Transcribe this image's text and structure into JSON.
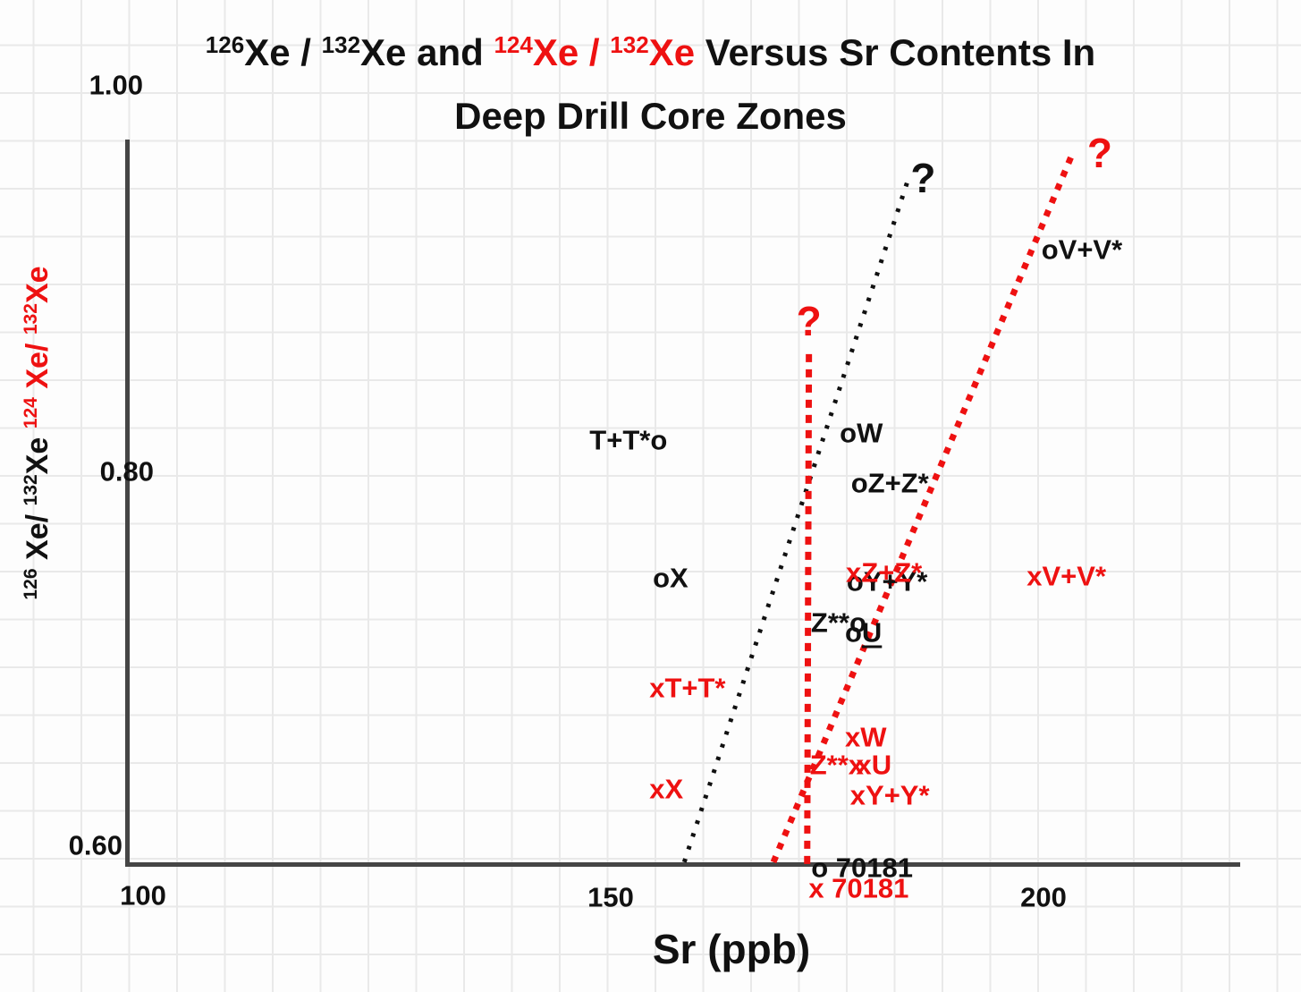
{
  "colors": {
    "red_accent": "#ee1111",
    "black_ink": "#111111",
    "axis_gray": "#454545",
    "grid_gray": "#e9e9e9"
  },
  "title": {
    "pre_sup_a": "126",
    "pre_a": "Xe / ",
    "pre_sup_b": "132",
    "pre_b": "Xe and ",
    "red_sup_a": "124",
    "red_a": "Xe / ",
    "red_sup_b": "132",
    "red_b": "Xe",
    "post": " Versus Sr Contents In",
    "line2": "Deep Drill Core Zones"
  },
  "y_axis": {
    "label_black": {
      "sup_a": "126",
      "a": " Xe/ ",
      "sup_b": "132",
      "b": "Xe"
    },
    "label_red": {
      "sup_a": "124",
      "a": " Xe/ ",
      "sup_b": "132",
      "b": "Xe"
    },
    "tick_top": "1.00",
    "tick_mid": "0.80",
    "tick_bottom": "0.60"
  },
  "x_axis": {
    "label": "Sr (ppb)",
    "tick_100": "100",
    "tick_150": "150",
    "tick_200": "200"
  },
  "chart_data": {
    "type": "scatter",
    "title": "126Xe/132Xe and 124Xe/132Xe Versus Sr Contents In Deep Drill Core Zones",
    "xlabel": "Sr (ppb)",
    "ylabel": "126Xe/132Xe (black o markers) and 124Xe/132Xe (red x markers)",
    "xlim": [
      95,
      222
    ],
    "ylim": [
      0.58,
      1.0
    ],
    "x_ticks": [
      100,
      150,
      200
    ],
    "y_ticks": [
      0.6,
      0.8,
      1.0
    ],
    "grid": true,
    "legend": "none (markers o/x embedded in point labels)",
    "calibration": {
      "x_anchors": [
        [
          100,
          160
        ],
        [
          150,
          683
        ],
        [
          200,
          1167
        ]
      ],
      "y_anchors": [
        [
          0.6,
          945
        ],
        [
          0.8,
          527
        ],
        [
          1.0,
          95
        ]
      ]
    },
    "series": [
      {
        "name": "126Xe/132Xe",
        "marker": "o",
        "color": "#111111",
        "points": [
          {
            "zone": "T+T*",
            "label": "T+T*o",
            "anchor": "end",
            "sr": 155.4,
            "ratio": 0.816
          },
          {
            "zone": "W",
            "label": "oW",
            "anchor": "start",
            "sr": 177.6,
            "ratio": 0.82
          },
          {
            "zone": "Z+Z*",
            "label": "oZ+Z*",
            "anchor": "start",
            "sr": 178.9,
            "ratio": 0.794
          },
          {
            "zone": "X",
            "label": "oX",
            "anchor": "start",
            "sr": 156.0,
            "ratio": 0.743
          },
          {
            "zone": "Y+Y*",
            "label": "oY+Y*",
            "anchor": "start",
            "sr": 178.4,
            "ratio": 0.741
          },
          {
            "zone": "Z**",
            "label": "Z**o",
            "anchor": "end",
            "sr": 178.4,
            "ratio": 0.719
          },
          {
            "zone": "U",
            "label": "oU",
            "anchor": "start",
            "sr": 178.2,
            "ratio": 0.714,
            "underline": "U"
          },
          {
            "zone": "V+V*",
            "label": "oV+V*",
            "anchor": "start",
            "sr": 200.9,
            "ratio": 0.915
          },
          {
            "zone": "70181",
            "label": "o 70181",
            "anchor": "start",
            "sr": 174.3,
            "ratio": 0.588
          }
        ]
      },
      {
        "name": "124Xe/132Xe",
        "marker": "x",
        "color": "#ee1111",
        "points": [
          {
            "zone": "T+T*",
            "label": "xT+T*",
            "anchor": "start",
            "sr": 155.6,
            "ratio": 0.684
          },
          {
            "zone": "W",
            "label": "xW",
            "anchor": "start",
            "sr": 178.2,
            "ratio": 0.658
          },
          {
            "zone": "Z+Z*",
            "label": "xZ+Z*",
            "anchor": "start",
            "sr": 178.3,
            "ratio": 0.746
          },
          {
            "zone": "Z**",
            "label": "Z**x",
            "anchor": "end",
            "sr": 178.1,
            "ratio": 0.643
          },
          {
            "zone": "U",
            "label": "xU",
            "anchor": "start",
            "sr": 179.5,
            "ratio": 0.643
          },
          {
            "zone": "X",
            "label": "xX",
            "anchor": "start",
            "sr": 155.6,
            "ratio": 0.63
          },
          {
            "zone": "Y+Y*",
            "label": "xY+Y*",
            "anchor": "start",
            "sr": 178.8,
            "ratio": 0.627
          },
          {
            "zone": "V+V*",
            "label": "xV+V*",
            "anchor": "start",
            "sr": 199.2,
            "ratio": 0.744
          },
          {
            "zone": "70181",
            "label": "x 70181",
            "anchor": "start",
            "sr": 174.0,
            "ratio": 0.577
          }
        ]
      }
    ],
    "trend_lines": [
      {
        "name": "black-dashed-trend-line",
        "color": "#111111",
        "width": 5,
        "dash": "4 11",
        "from": [
          158.5,
          0.591
        ],
        "to": [
          184.5,
          0.953
        ],
        "question_mark": {
          "label": "?",
          "sr": 186.1,
          "ratio": 0.952
        }
      },
      {
        "name": "red-vertical-dashed-line",
        "color": "#ee1111",
        "width": 7,
        "dash": "9 8",
        "from": [
          172.7,
          0.59
        ],
        "to": [
          172.9,
          0.863
        ],
        "question_mark": {
          "label": "?",
          "sr": 172.9,
          "ratio": 0.878
        }
      },
      {
        "name": "red-diagonal-dashed-line",
        "color": "#ee1111",
        "width": 7,
        "dash": "7 9",
        "from": [
          168.8,
          0.591
        ],
        "to": [
          203.4,
          0.965
        ],
        "question_mark": {
          "label": "?",
          "sr": 206.5,
          "ratio": 0.965
        }
      }
    ]
  }
}
